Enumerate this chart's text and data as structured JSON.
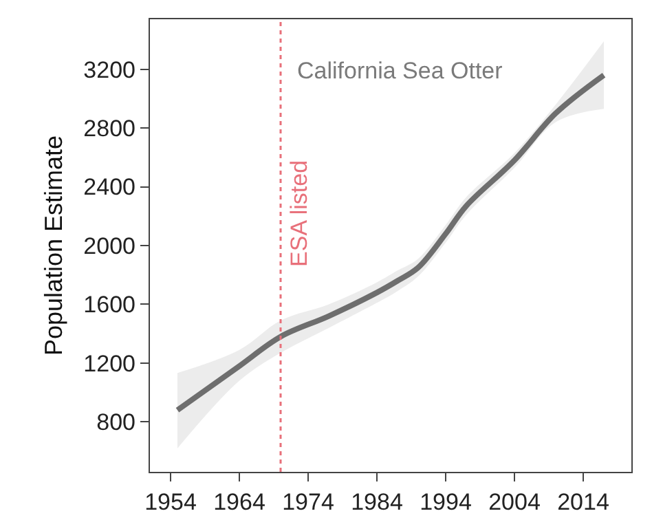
{
  "chart_data": {
    "type": "line",
    "ylabel": "Population Estimate",
    "x": [
      1955,
      1964,
      1970,
      1977,
      1984,
      1987,
      1990,
      1994,
      1997,
      2004,
      2010,
      2017
    ],
    "series": [
      {
        "color": "#6e6e6e",
        "values": [
          880,
          1180,
          1380,
          1520,
          1680,
          1760,
          1850,
          2080,
          2270,
          2580,
          2900,
          3160
        ],
        "lower": [
          620,
          1080,
          1270,
          1440,
          1610,
          1690,
          1790,
          2020,
          2210,
          2530,
          2840,
          2930
        ],
        "upper": [
          1133,
          1290,
          1490,
          1600,
          1750,
          1830,
          1910,
          2140,
          2330,
          2630,
          2960,
          3390
        ]
      }
    ],
    "xlim": [
      1951,
      2021
    ],
    "xticks": [
      1954,
      1964,
      1974,
      1984,
      1994,
      2004,
      2014
    ],
    "ylim": [
      460,
      3540
    ],
    "yticks": [
      800,
      1200,
      1600,
      2000,
      2400,
      2800,
      3200
    ],
    "ref_lines": [
      {
        "axis": "x",
        "value": 1970,
        "label": "ESA listed",
        "color": "#e8707a",
        "line_style": "dotted"
      }
    ],
    "annotations": [
      "California Sea Otter"
    ],
    "marker": "none",
    "line_style": "solid"
  }
}
